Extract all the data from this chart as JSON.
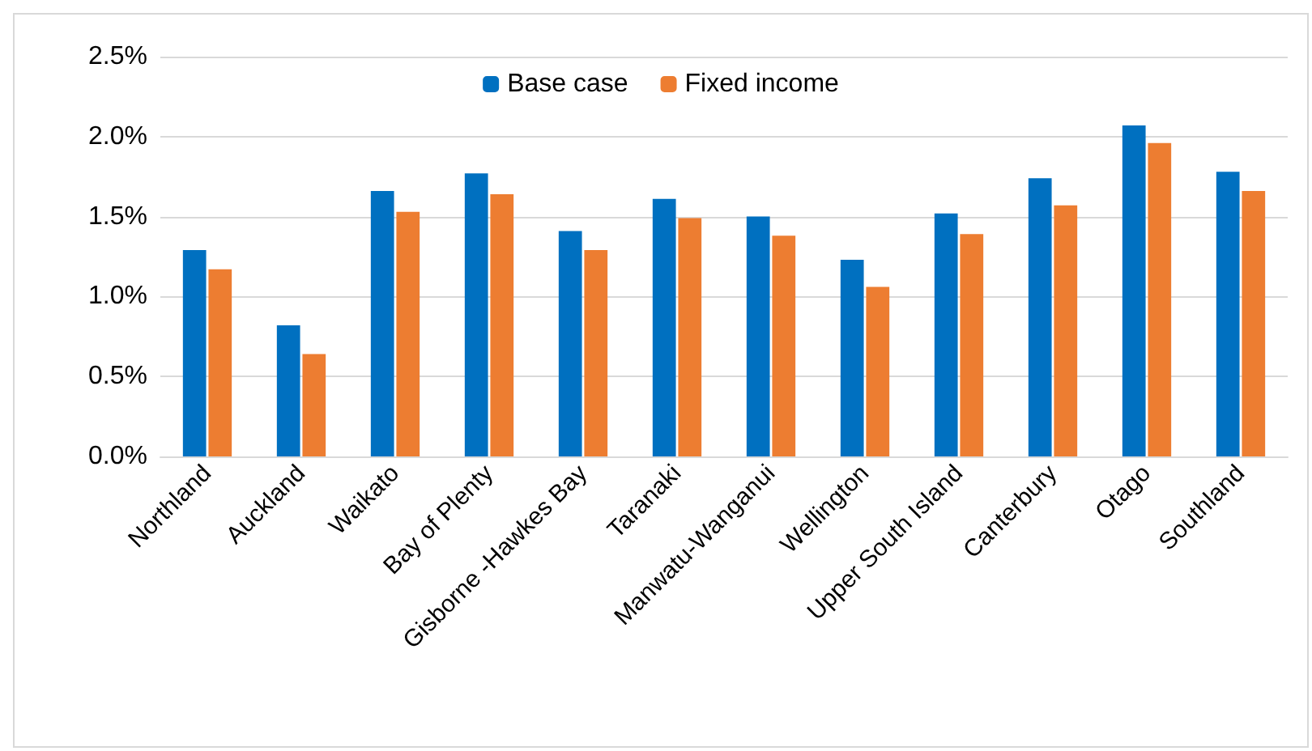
{
  "chart_data": {
    "type": "bar",
    "categories": [
      "Northland",
      "Auckland",
      "Waikato",
      "Bay of Plenty",
      "Gisborne -Hawkes Bay",
      "Taranaki",
      "Manwatu-Wanganui",
      "Wellington",
      "Upper South Island",
      "Canterbury",
      "Otago",
      "Southland"
    ],
    "series": [
      {
        "name": "Base case",
        "color": "#0070c0",
        "values": [
          1.29,
          0.82,
          1.66,
          1.77,
          1.41,
          1.61,
          1.5,
          1.23,
          1.52,
          1.74,
          2.07,
          1.78
        ]
      },
      {
        "name": "Fixed income",
        "color": "#ed7d31",
        "values": [
          1.17,
          0.64,
          1.53,
          1.64,
          1.29,
          1.49,
          1.38,
          1.06,
          1.39,
          1.57,
          1.96,
          1.66
        ]
      }
    ],
    "ylim": [
      0,
      2.5
    ],
    "yticks": [
      {
        "value": 0,
        "label": "0.0%"
      },
      {
        "value": 0.5,
        "label": "0.5%"
      },
      {
        "value": 1,
        "label": "1.0%"
      },
      {
        "value": 1.5,
        "label": "1.5%"
      },
      {
        "value": 2,
        "label": "2.0%"
      },
      {
        "value": 2.5,
        "label": "2.5%"
      }
    ],
    "grid": "y",
    "legend": "top"
  }
}
